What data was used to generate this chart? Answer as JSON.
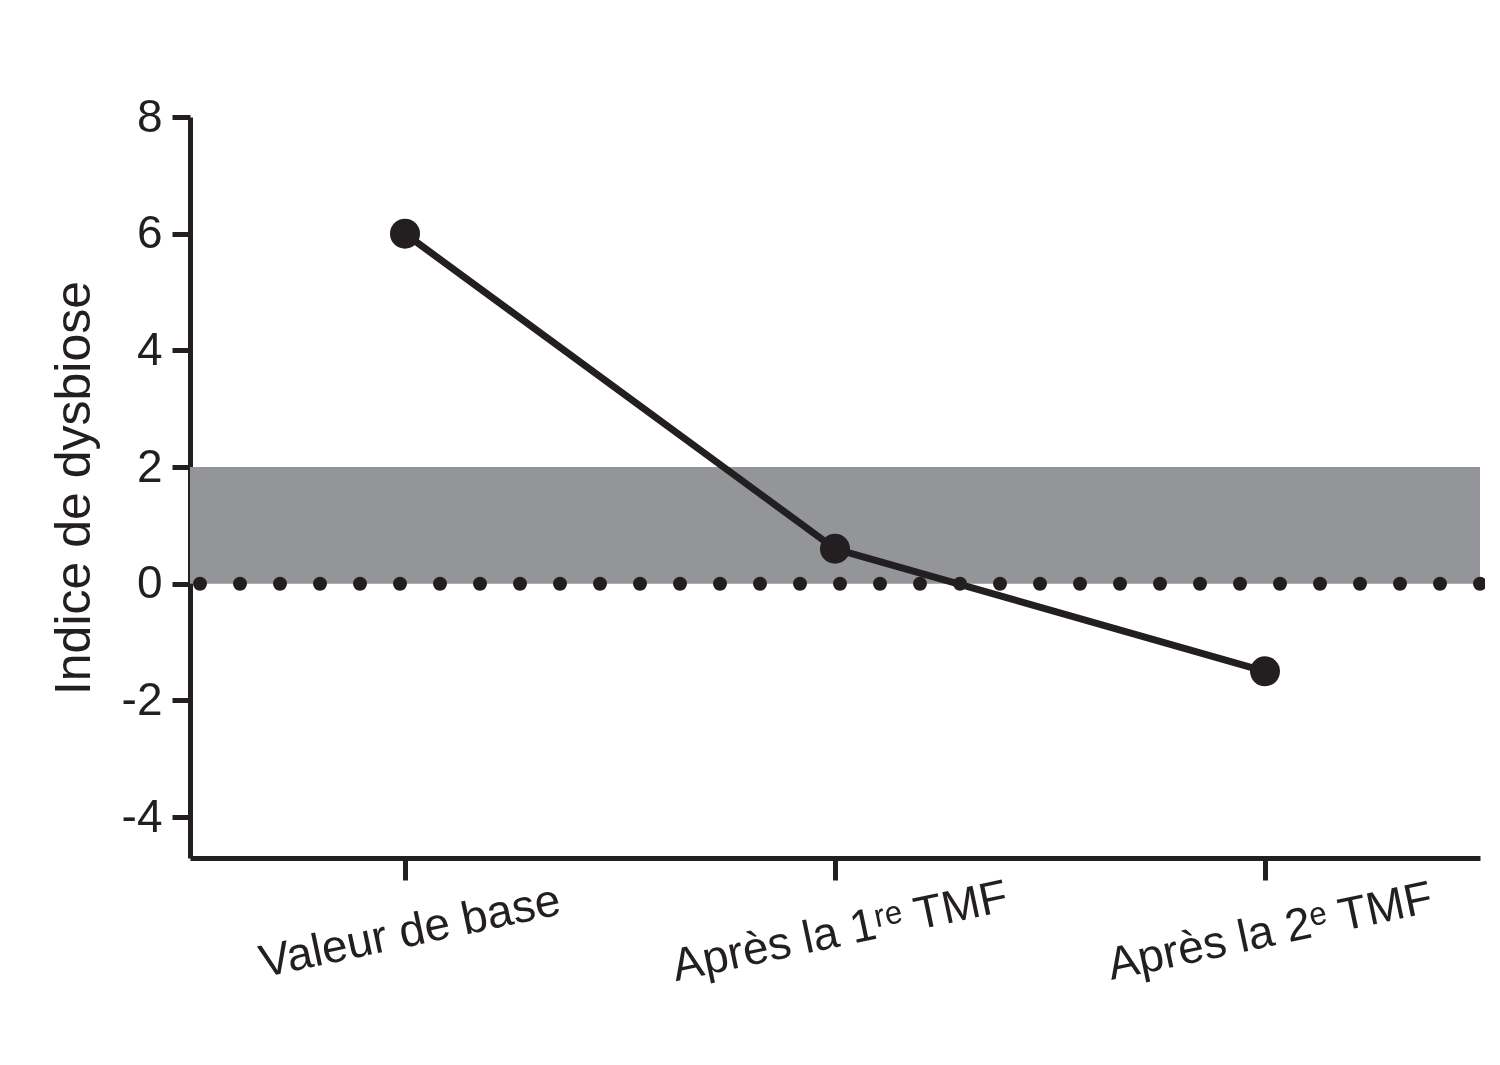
{
  "chart_data": {
    "type": "line",
    "ylabel": "Indice de dysbiose",
    "categories": [
      "Valeur de base",
      "Après la 1ʳᵉ TMF",
      "Après la 2ᵉ TMF"
    ],
    "series": [
      {
        "color": "#231f20",
        "values": [
          6,
          0.6,
          -1.5
        ]
      }
    ],
    "ylim": [
      -4.7,
      8
    ],
    "yticks": [
      -4,
      -2,
      0,
      2,
      4,
      6,
      8
    ],
    "grid": false,
    "marker": "circle",
    "line_style": "solid",
    "bands": [
      {
        "axis": "y",
        "from": 0,
        "to": 2,
        "color": "#939598"
      }
    ],
    "ref_lines": [
      {
        "axis": "y",
        "value": 0,
        "color": "#231f20",
        "line_style": "dotted"
      }
    ]
  }
}
